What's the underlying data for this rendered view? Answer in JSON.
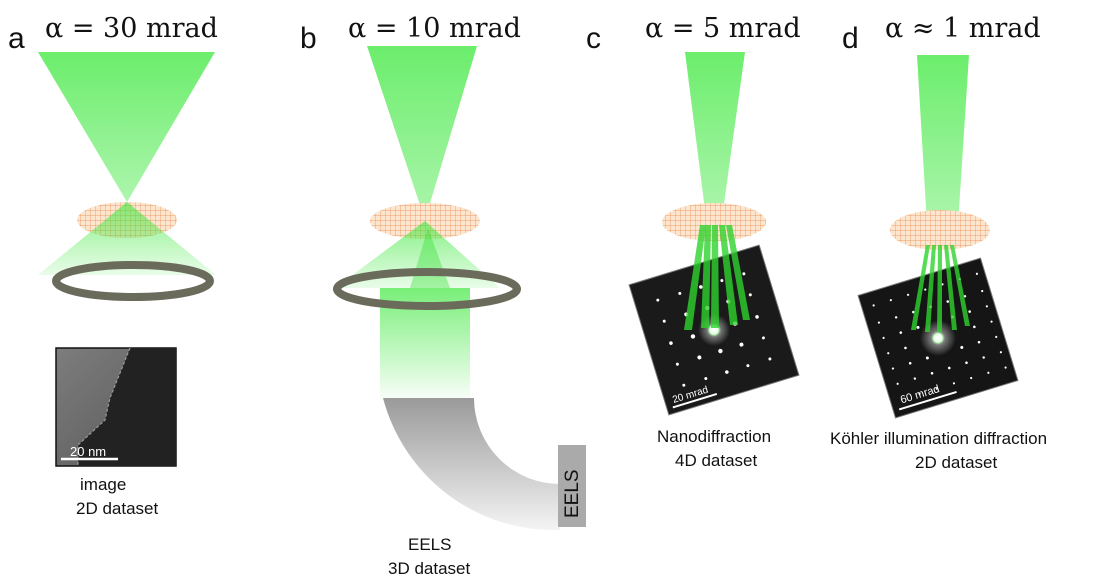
{
  "panels": [
    {
      "letter": "a",
      "alpha": "α = 30 mrad",
      "caption_line1": "image",
      "caption_line2": "2D dataset",
      "scalebar": "20 nm"
    },
    {
      "letter": "b",
      "alpha": "α = 10 mrad",
      "caption_line1": "EELS",
      "caption_line2": "3D dataset",
      "detector": "EELS"
    },
    {
      "letter": "c",
      "alpha": "α = 5 mrad",
      "caption_line1": "Nanodiffraction",
      "caption_line2": "4D dataset",
      "scalebar": "20 mrad"
    },
    {
      "letter": "d",
      "alpha": "α ≈ 1 mrad",
      "caption_line1": "Köhler illumination diffraction",
      "caption_line2": "2D dataset",
      "scalebar": "60 mrad"
    }
  ],
  "colors": {
    "beam": "#33e633",
    "specimen": "#f4b37a",
    "ring": "#666655",
    "pattern_bg": "#1a1a1a"
  }
}
